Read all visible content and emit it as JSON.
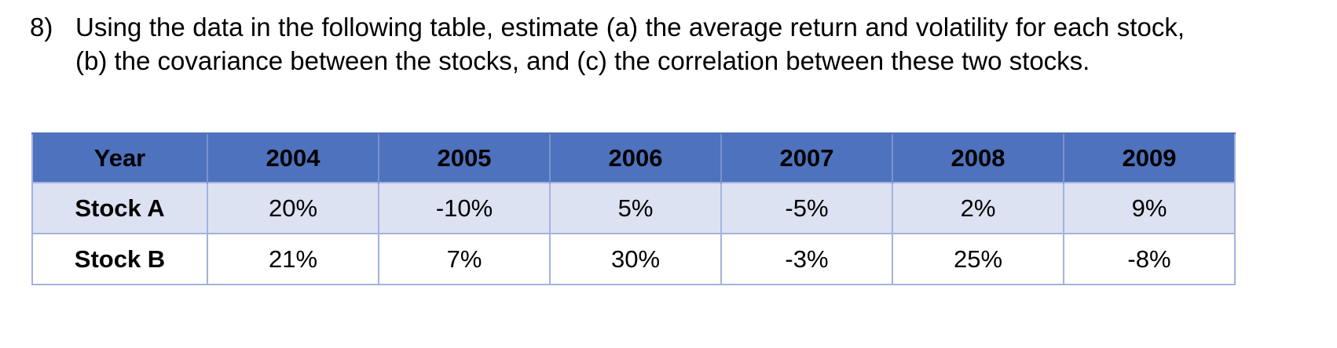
{
  "question": {
    "number": "8)",
    "text": "Using the data in the following table, estimate (a) the average return and volatility for each stock, (b) the covariance between the stocks, and (c) the correlation between these two stocks."
  },
  "chart_data": {
    "type": "table",
    "columns": [
      "Year",
      "2004",
      "2005",
      "2006",
      "2007",
      "2008",
      "2009"
    ],
    "rows": [
      {
        "label": "Stock A",
        "values": [
          "20%",
          "-10%",
          "5%",
          "-5%",
          "2%",
          "9%"
        ]
      },
      {
        "label": "Stock B",
        "values": [
          "21%",
          "7%",
          "30%",
          "-3%",
          "25%",
          "-8%"
        ]
      }
    ]
  },
  "colors": {
    "header_bg": "#4e72bd",
    "row_a_bg": "#dce2f1",
    "row_b_bg": "#ffffff",
    "border": "#a3b3df",
    "header_border": "#7c91cd",
    "text": "#000000"
  }
}
